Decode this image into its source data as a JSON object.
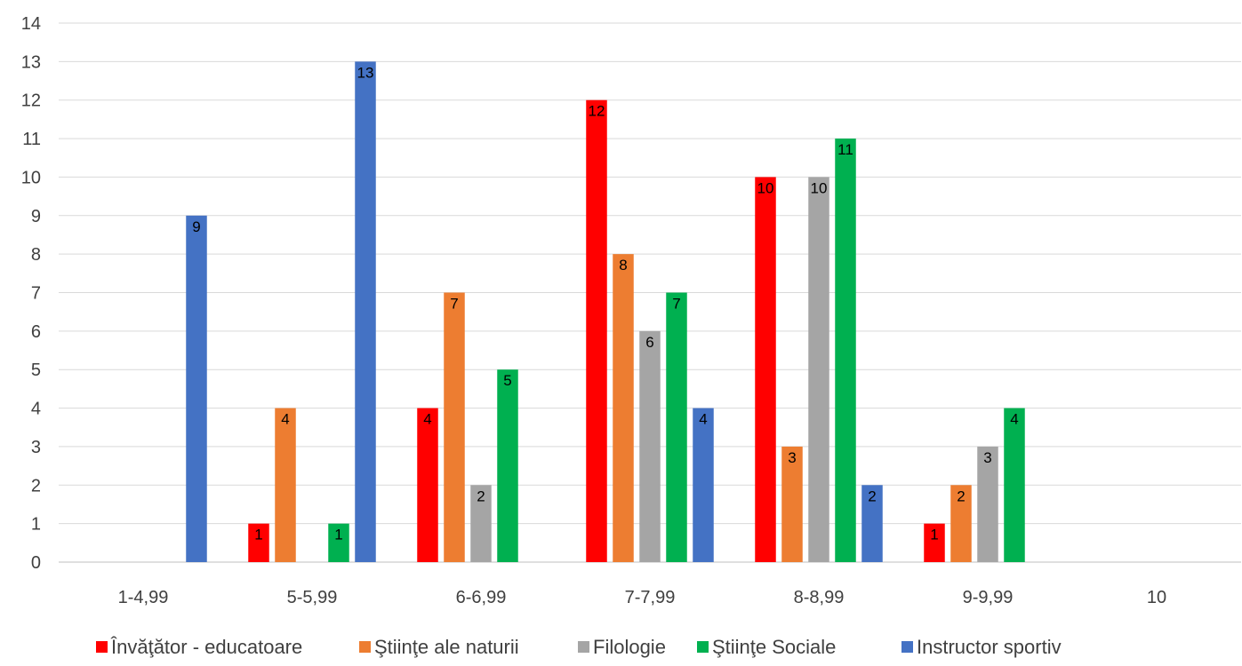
{
  "chart_data": {
    "type": "bar",
    "title": "",
    "xlabel": "",
    "ylabel": "",
    "ylim": [
      0,
      14
    ],
    "yticks": [
      0,
      1,
      2,
      3,
      4,
      5,
      6,
      7,
      8,
      9,
      10,
      11,
      12,
      13,
      14
    ],
    "grid": true,
    "legend_position": "bottom",
    "categories": [
      "1-4,99",
      "5-5,99",
      "6-6,99",
      "7-7,99",
      "8-8,99",
      "9-9,99",
      "10"
    ],
    "series": [
      {
        "name": "Învăţător - educatoare",
        "color": "#FF0000",
        "values": [
          null,
          1,
          4,
          12,
          10,
          1,
          null
        ]
      },
      {
        "name": "Ştiinţe ale naturii",
        "color": "#ED7D31",
        "values": [
          null,
          4,
          7,
          8,
          3,
          2,
          null
        ]
      },
      {
        "name": "Filologie",
        "color": "#A5A5A5",
        "values": [
          null,
          null,
          2,
          6,
          10,
          3,
          null
        ]
      },
      {
        "name": "Ştiinţe Sociale",
        "color": "#00B050",
        "values": [
          null,
          1,
          5,
          7,
          11,
          4,
          null
        ]
      },
      {
        "name": "Instructor sportiv",
        "color": "#4472C4",
        "values": [
          9,
          13,
          null,
          4,
          2,
          null,
          null
        ]
      }
    ]
  }
}
